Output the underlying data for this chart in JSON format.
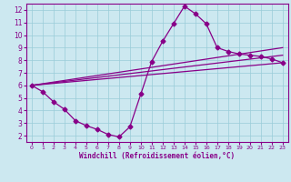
{
  "xlabel": "Windchill (Refroidissement éolien,°C)",
  "xlim": [
    -0.5,
    23.5
  ],
  "ylim": [
    1.5,
    12.5
  ],
  "xticks": [
    0,
    1,
    2,
    3,
    4,
    5,
    6,
    7,
    8,
    9,
    10,
    11,
    12,
    13,
    14,
    15,
    16,
    17,
    18,
    19,
    20,
    21,
    22,
    23
  ],
  "yticks": [
    2,
    3,
    4,
    5,
    6,
    7,
    8,
    9,
    10,
    11,
    12
  ],
  "bg_color": "#cce8f0",
  "grid_color": "#99ccd8",
  "line_color": "#880088",
  "line_width": 0.9,
  "marker_size": 2.5,
  "curve_x": [
    0,
    1,
    2,
    3,
    4,
    5,
    6,
    7,
    8,
    9,
    10,
    11,
    12,
    13,
    14,
    15,
    16,
    17,
    18,
    19,
    20,
    21,
    22,
    23
  ],
  "curve_y": [
    6.0,
    5.5,
    4.7,
    4.1,
    3.2,
    2.8,
    2.5,
    2.1,
    1.9,
    2.7,
    5.3,
    7.9,
    9.5,
    10.9,
    12.3,
    11.7,
    10.9,
    9.0,
    8.7,
    8.5,
    8.4,
    8.3,
    8.1,
    7.8
  ],
  "line1_x": [
    0,
    23
  ],
  "line1_y": [
    6.0,
    7.8
  ],
  "line2_x": [
    0,
    23
  ],
  "line2_y": [
    6.0,
    8.4
  ],
  "line3_x": [
    0,
    23
  ],
  "line3_y": [
    6.0,
    9.0
  ]
}
